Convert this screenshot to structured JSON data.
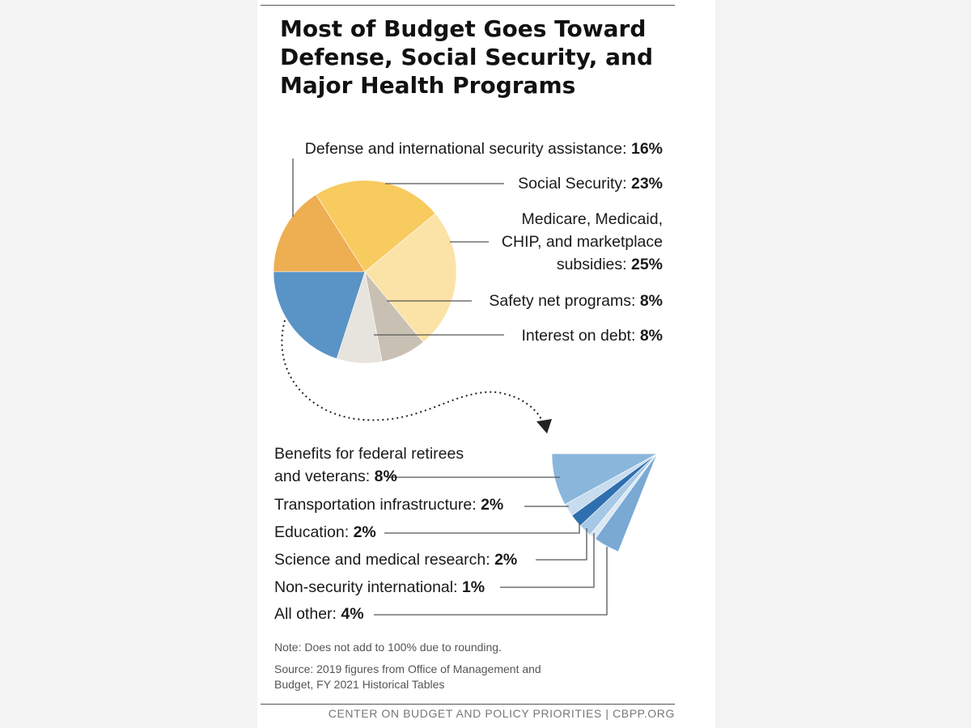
{
  "title": "Most of Budget Goes Toward Defense, Social Security, and Major Health Programs",
  "note": "Note: Does not add to 100% due to rounding.",
  "source_line1": "Source: 2019 figures from Office of Management and",
  "source_line2": "Budget, FY 2021 Historical Tables",
  "footer": "CENTER ON BUDGET AND POLICY PRIORITIES | CBPP.ORG",
  "colors": {
    "defense": "#eeae52",
    "social_security": "#f8cb5f",
    "health": "#fbe2a6",
    "safety_net": "#c9c0b4",
    "interest": "#e7e3dd",
    "other_group": "#5a93c5"
  },
  "chart_data": [
    {
      "type": "pie",
      "series": [
        {
          "label": "Defense and international security assistance: ",
          "pct": "16%",
          "value": 16,
          "color": "#eeae52"
        },
        {
          "label": "Social Security: ",
          "pct": "23%",
          "value": 23,
          "color": "#f8cb5f"
        },
        {
          "label_lines": [
            "Medicare, Medicaid,",
            "CHIP, and marketplace",
            "subsidies: "
          ],
          "pct": "25%",
          "value": 25,
          "color": "#fbe2a6"
        },
        {
          "label": "Safety net programs: ",
          "pct": "8%",
          "value": 8,
          "color": "#c9c0b4"
        },
        {
          "label": "Interest on debt: ",
          "pct": "8%",
          "value": 8,
          "color": "#e7e3dd"
        }
      ],
      "remainder_value": 19,
      "remainder_color": "#5a93c5"
    },
    {
      "type": "pie",
      "series": [
        {
          "label_lines": [
            "Benefits for federal retirees",
            "and veterans: "
          ],
          "pct": "8%",
          "value": 8,
          "color": "#8ab6db"
        },
        {
          "label": "Transportation infrastructure: ",
          "pct": "2%",
          "value": 2,
          "color": "#c7dcee"
        },
        {
          "label": "Education: ",
          "pct": "2%",
          "value": 2,
          "color": "#2f6faf"
        },
        {
          "label": "Science and medical research: ",
          "pct": "2%",
          "value": 2,
          "color": "#a6c8e5"
        },
        {
          "label": "Non-security international: ",
          "pct": "1%",
          "value": 1,
          "color": "#dbe8f4"
        },
        {
          "label": "All other: ",
          "pct": "4%",
          "value": 4,
          "color": "#7aa9d4"
        }
      ]
    }
  ]
}
